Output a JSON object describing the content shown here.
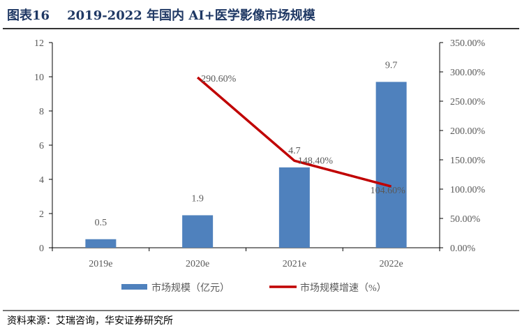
{
  "title": "图表16    2019-2022 年国内 AI+医学影像市场规模",
  "source": "资料来源：艾瑞咨询，华安证券研究所",
  "chart_data": {
    "type": "bar+line",
    "categories": [
      "2019e",
      "2020e",
      "2021e",
      "2022e"
    ],
    "series": [
      {
        "name": "市场规模（亿元）",
        "type": "bar",
        "axis": "left",
        "color": "#4f81bd",
        "values": [
          0.5,
          1.9,
          4.7,
          9.7
        ],
        "labels": [
          "0.5",
          "1.9",
          "4.7",
          "9.7"
        ]
      },
      {
        "name": "市场规模增速（%）",
        "type": "line",
        "axis": "right",
        "color": "#c00000",
        "values": [
          null,
          290.6,
          148.4,
          104.6
        ],
        "labels": [
          "",
          "290.60%",
          "148.40%",
          "104.60%"
        ]
      }
    ],
    "ylim_left": [
      0,
      12
    ],
    "yticks_left": [
      "0",
      "2",
      "4",
      "6",
      "8",
      "10",
      "12"
    ],
    "ylim_right": [
      0,
      350
    ],
    "yticks_right": [
      "0.00%",
      "50.00%",
      "100.00%",
      "150.00%",
      "200.00%",
      "250.00%",
      "300.00%",
      "350.00%"
    ],
    "grid": false,
    "legend_position": "bottom"
  }
}
